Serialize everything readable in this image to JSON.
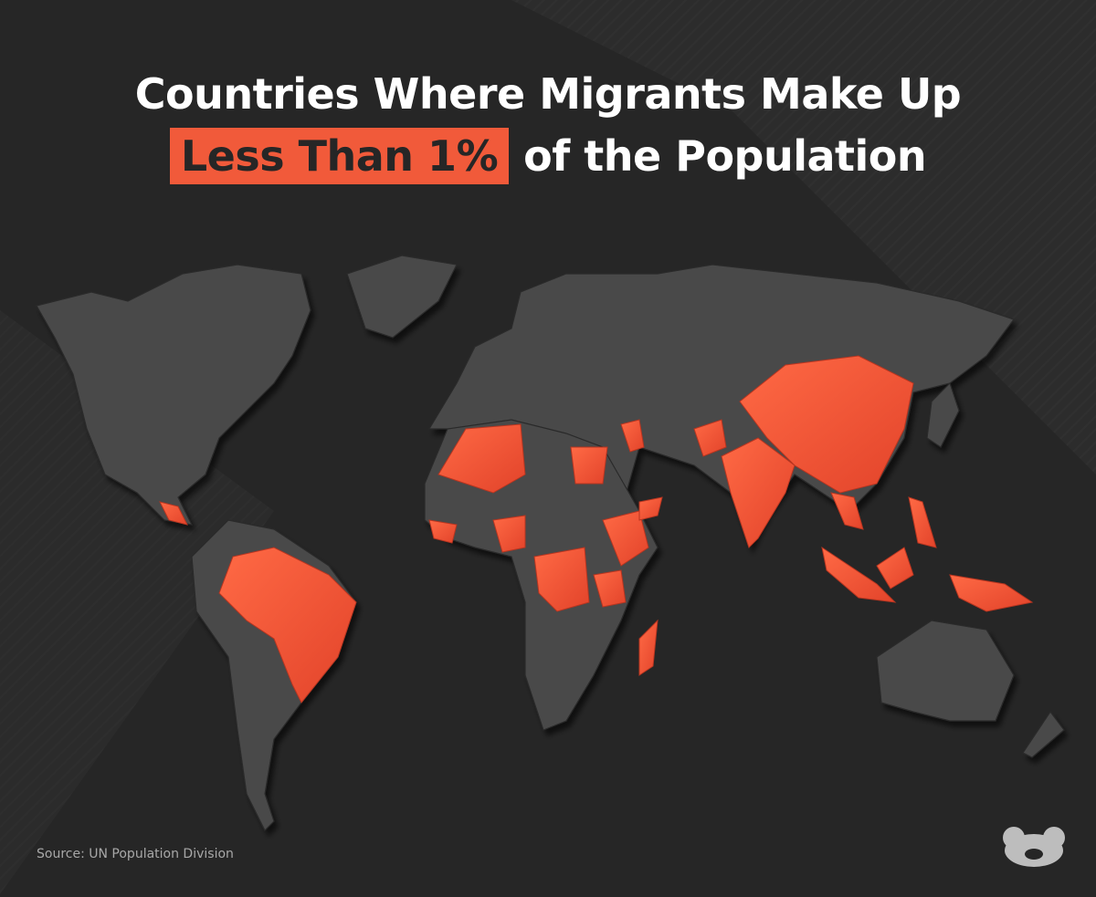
{
  "header": {
    "title_line1": "Countries Where Migrants Make Up",
    "title_highlight": "Less Than 1%",
    "title_rest": "of the Population"
  },
  "footer": {
    "source": "Source: UN Population Division"
  }
}
